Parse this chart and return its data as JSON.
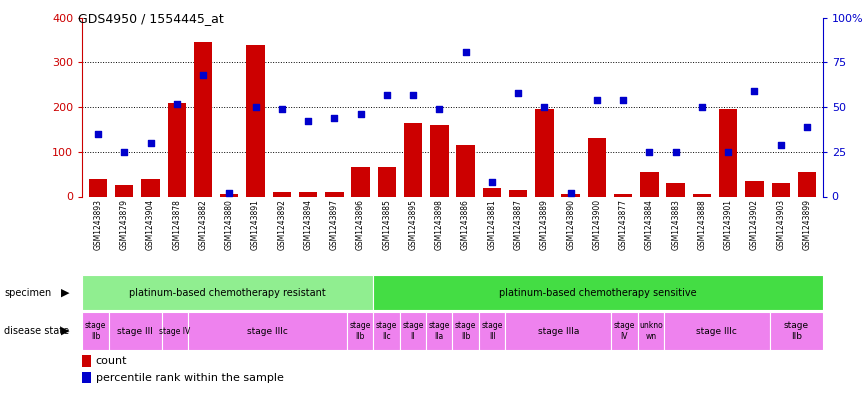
{
  "title": "GDS4950 / 1554445_at",
  "samples": [
    "GSM1243893",
    "GSM1243879",
    "GSM1243904",
    "GSM1243878",
    "GSM1243882",
    "GSM1243880",
    "GSM1243891",
    "GSM1243892",
    "GSM1243894",
    "GSM1243897",
    "GSM1243896",
    "GSM1243885",
    "GSM1243895",
    "GSM1243898",
    "GSM1243886",
    "GSM1243881",
    "GSM1243887",
    "GSM1243889",
    "GSM1243890",
    "GSM1243900",
    "GSM1243877",
    "GSM1243884",
    "GSM1243883",
    "GSM1243888",
    "GSM1243901",
    "GSM1243902",
    "GSM1243903",
    "GSM1243899"
  ],
  "bar_values": [
    40,
    25,
    40,
    210,
    345,
    5,
    340,
    10,
    10,
    10,
    65,
    65,
    165,
    160,
    115,
    20,
    15,
    195,
    5,
    130,
    5,
    55,
    30,
    5,
    195,
    35,
    30,
    55
  ],
  "dot_values_pct": [
    35,
    25,
    30,
    52,
    68,
    2,
    50,
    49,
    42,
    44,
    46,
    57,
    57,
    49,
    81,
    8,
    58,
    50,
    2,
    54,
    54,
    25,
    25,
    50,
    25,
    59,
    29,
    39
  ],
  "ylim_left": [
    0,
    400
  ],
  "ylim_right": [
    0,
    100
  ],
  "yticks_left": [
    0,
    100,
    200,
    300,
    400
  ],
  "yticks_right": [
    0,
    25,
    50,
    75,
    100
  ],
  "specimen_groups": [
    {
      "label": "platinum-based chemotherapy resistant",
      "start": 0,
      "end": 11,
      "color": "#90EE90"
    },
    {
      "label": "platinum-based chemotherapy sensitive",
      "start": 11,
      "end": 28,
      "color": "#44DD44"
    }
  ],
  "disease_state_groups": [
    {
      "label": "stage\nIIb",
      "start": 0,
      "end": 1,
      "color": "#EE82EE"
    },
    {
      "label": "stage III",
      "start": 1,
      "end": 3,
      "color": "#EE82EE"
    },
    {
      "label": "stage IV",
      "start": 3,
      "end": 4,
      "color": "#EE82EE"
    },
    {
      "label": "stage IIIc",
      "start": 4,
      "end": 10,
      "color": "#EE82EE"
    },
    {
      "label": "stage\nIIb",
      "start": 10,
      "end": 11,
      "color": "#EE82EE"
    },
    {
      "label": "stage\nIIc",
      "start": 11,
      "end": 12,
      "color": "#EE82EE"
    },
    {
      "label": "stage\nII",
      "start": 12,
      "end": 13,
      "color": "#EE82EE"
    },
    {
      "label": "stage\nIIa",
      "start": 13,
      "end": 14,
      "color": "#EE82EE"
    },
    {
      "label": "stage\nIIb",
      "start": 14,
      "end": 15,
      "color": "#EE82EE"
    },
    {
      "label": "stage\nIII",
      "start": 15,
      "end": 16,
      "color": "#EE82EE"
    },
    {
      "label": "stage IIIa",
      "start": 16,
      "end": 20,
      "color": "#EE82EE"
    },
    {
      "label": "stage\nIV",
      "start": 20,
      "end": 21,
      "color": "#EE82EE"
    },
    {
      "label": "unkno\nwn",
      "start": 21,
      "end": 22,
      "color": "#EE82EE"
    },
    {
      "label": "stage IIIc",
      "start": 22,
      "end": 26,
      "color": "#EE82EE"
    },
    {
      "label": "stage\nIIb",
      "start": 26,
      "end": 28,
      "color": "#EE82EE"
    }
  ],
  "bar_color": "#CC0000",
  "dot_color": "#0000CC",
  "background_color": "#ffffff",
  "left_axis_color": "#CC0000",
  "right_axis_color": "#0000CC",
  "tick_bg_color": "#D8D8D8"
}
